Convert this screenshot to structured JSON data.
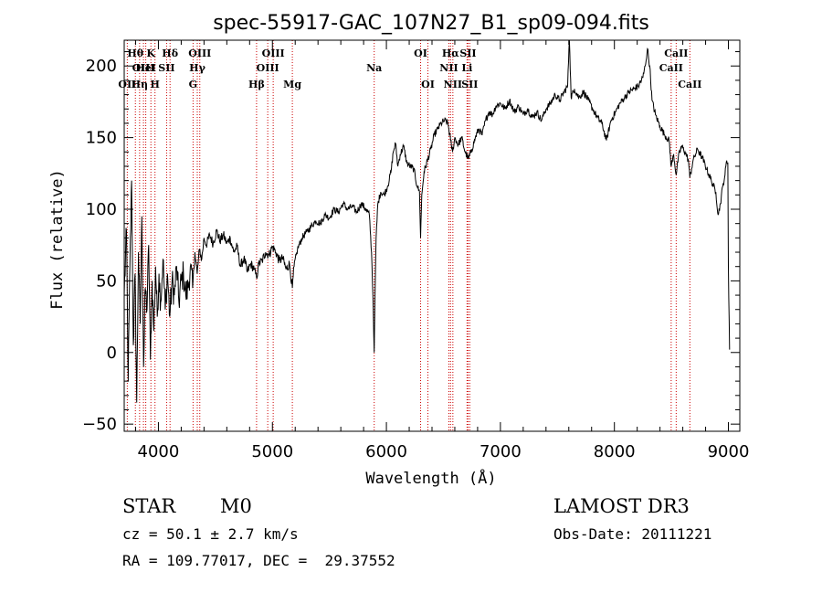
{
  "chart_data": {
    "type": "line",
    "title": "spec-55917-GAC_107N27_B1_sp09-094.fits",
    "xlabel": "Wavelength (Å)",
    "ylabel": "Flux (relative)",
    "xlim": [
      3700,
      9100
    ],
    "ylim": [
      -55,
      218
    ],
    "xticks": [
      4000,
      5000,
      6000,
      7000,
      8000,
      9000
    ],
    "yticks": [
      -50,
      0,
      50,
      100,
      150,
      200
    ],
    "grid": false,
    "spectrum": [
      [
        3700,
        40
      ],
      [
        3720,
        85
      ],
      [
        3735,
        -20
      ],
      [
        3750,
        60
      ],
      [
        3765,
        120
      ],
      [
        3780,
        5
      ],
      [
        3795,
        55
      ],
      [
        3810,
        -35
      ],
      [
        3825,
        70
      ],
      [
        3840,
        20
      ],
      [
        3855,
        95
      ],
      [
        3870,
        -10
      ],
      [
        3885,
        45
      ],
      [
        3900,
        30
      ],
      [
        3915,
        75
      ],
      [
        3930,
        -5
      ],
      [
        3945,
        50
      ],
      [
        3960,
        15
      ],
      [
        3975,
        60
      ],
      [
        3990,
        25
      ],
      [
        4005,
        55
      ],
      [
        4020,
        35
      ],
      [
        4040,
        65
      ],
      [
        4060,
        30
      ],
      [
        4080,
        55
      ],
      [
        4100,
        25
      ],
      [
        4120,
        50
      ],
      [
        4140,
        40
      ],
      [
        4160,
        60
      ],
      [
        4180,
        35
      ],
      [
        4200,
        50
      ],
      [
        4220,
        55
      ],
      [
        4240,
        40
      ],
      [
        4260,
        45
      ],
      [
        4280,
        60
      ],
      [
        4300,
        45
      ],
      [
        4320,
        70
      ],
      [
        4340,
        55
      ],
      [
        4360,
        72
      ],
      [
        4380,
        65
      ],
      [
        4400,
        80
      ],
      [
        4420,
        75
      ],
      [
        4450,
        82
      ],
      [
        4480,
        76
      ],
      [
        4510,
        85
      ],
      [
        4540,
        78
      ],
      [
        4570,
        82
      ],
      [
        4600,
        76
      ],
      [
        4630,
        80
      ],
      [
        4660,
        70
      ],
      [
        4690,
        74
      ],
      [
        4720,
        60
      ],
      [
        4750,
        66
      ],
      [
        4780,
        56
      ],
      [
        4810,
        62
      ],
      [
        4840,
        58
      ],
      [
        4861,
        52
      ],
      [
        4880,
        62
      ],
      [
        4910,
        64
      ],
      [
        4940,
        70
      ],
      [
        4970,
        68
      ],
      [
        5000,
        74
      ],
      [
        5030,
        70
      ],
      [
        5060,
        64
      ],
      [
        5090,
        66
      ],
      [
        5120,
        58
      ],
      [
        5150,
        62
      ],
      [
        5175,
        45
      ],
      [
        5190,
        60
      ],
      [
        5220,
        72
      ],
      [
        5260,
        80
      ],
      [
        5300,
        84
      ],
      [
        5340,
        88
      ],
      [
        5380,
        92
      ],
      [
        5420,
        90
      ],
      [
        5460,
        96
      ],
      [
        5500,
        94
      ],
      [
        5540,
        100
      ],
      [
        5580,
        98
      ],
      [
        5620,
        104
      ],
      [
        5660,
        100
      ],
      [
        5700,
        102
      ],
      [
        5740,
        98
      ],
      [
        5780,
        104
      ],
      [
        5820,
        100
      ],
      [
        5850,
        96
      ],
      [
        5870,
        70
      ],
      [
        5885,
        30
      ],
      [
        5893,
        0
      ],
      [
        5900,
        40
      ],
      [
        5910,
        80
      ],
      [
        5925,
        104
      ],
      [
        5950,
        112
      ],
      [
        5980,
        110
      ],
      [
        6010,
        116
      ],
      [
        6040,
        126
      ],
      [
        6060,
        140
      ],
      [
        6080,
        146
      ],
      [
        6100,
        130
      ],
      [
        6120,
        138
      ],
      [
        6150,
        144
      ],
      [
        6180,
        132
      ],
      [
        6210,
        130
      ],
      [
        6240,
        128
      ],
      [
        6270,
        116
      ],
      [
        6290,
        112
      ],
      [
        6300,
        80
      ],
      [
        6310,
        110
      ],
      [
        6330,
        126
      ],
      [
        6360,
        134
      ],
      [
        6390,
        142
      ],
      [
        6420,
        152
      ],
      [
        6450,
        156
      ],
      [
        6480,
        160
      ],
      [
        6510,
        162
      ],
      [
        6540,
        160
      ],
      [
        6563,
        148
      ],
      [
        6580,
        140
      ],
      [
        6600,
        150
      ],
      [
        6630,
        145
      ],
      [
        6660,
        150
      ],
      [
        6690,
        140
      ],
      [
        6720,
        135
      ],
      [
        6750,
        142
      ],
      [
        6780,
        150
      ],
      [
        6810,
        156
      ],
      [
        6840,
        152
      ],
      [
        6870,
        162
      ],
      [
        6900,
        168
      ],
      [
        6930,
        166
      ],
      [
        6960,
        172
      ],
      [
        7000,
        174
      ],
      [
        7040,
        170
      ],
      [
        7080,
        176
      ],
      [
        7120,
        168
      ],
      [
        7160,
        172
      ],
      [
        7200,
        166
      ],
      [
        7240,
        170
      ],
      [
        7280,
        164
      ],
      [
        7320,
        168
      ],
      [
        7360,
        162
      ],
      [
        7400,
        170
      ],
      [
        7440,
        174
      ],
      [
        7480,
        180
      ],
      [
        7520,
        176
      ],
      [
        7560,
        182
      ],
      [
        7590,
        186
      ],
      [
        7605,
        222
      ],
      [
        7620,
        178
      ],
      [
        7650,
        184
      ],
      [
        7690,
        178
      ],
      [
        7730,
        182
      ],
      [
        7770,
        176
      ],
      [
        7810,
        170
      ],
      [
        7850,
        164
      ],
      [
        7890,
        160
      ],
      [
        7930,
        148
      ],
      [
        7970,
        162
      ],
      [
        8010,
        168
      ],
      [
        8050,
        174
      ],
      [
        8090,
        178
      ],
      [
        8130,
        182
      ],
      [
        8170,
        184
      ],
      [
        8210,
        186
      ],
      [
        8250,
        192
      ],
      [
        8270,
        200
      ],
      [
        8290,
        212
      ],
      [
        8310,
        200
      ],
      [
        8330,
        176
      ],
      [
        8360,
        166
      ],
      [
        8400,
        158
      ],
      [
        8440,
        152
      ],
      [
        8480,
        148
      ],
      [
        8498,
        130
      ],
      [
        8520,
        138
      ],
      [
        8542,
        124
      ],
      [
        8560,
        136
      ],
      [
        8590,
        144
      ],
      [
        8620,
        140
      ],
      [
        8650,
        134
      ],
      [
        8662,
        122
      ],
      [
        8690,
        134
      ],
      [
        8730,
        142
      ],
      [
        8770,
        136
      ],
      [
        8810,
        128
      ],
      [
        8850,
        120
      ],
      [
        8890,
        112
      ],
      [
        8910,
        96
      ],
      [
        8930,
        104
      ],
      [
        8950,
        116
      ],
      [
        8970,
        124
      ],
      [
        8985,
        134
      ],
      [
        8995,
        132
      ],
      [
        9000,
        60
      ],
      [
        9010,
        2
      ]
    ],
    "line_markers": [
      {
        "wl": 3727,
        "label": "OII",
        "row": 3
      },
      {
        "wl": 3798,
        "label": "Hθ",
        "row": 1
      },
      {
        "wl": 3835,
        "label": "Hη",
        "row": 3
      },
      {
        "wl": 3869,
        "label": "OIII",
        "row": 2
      },
      {
        "wl": 3889,
        "label": "HeI",
        "row": 2
      },
      {
        "wl": 3934,
        "label": "K",
        "row": 1
      },
      {
        "wl": 3970,
        "label": "H",
        "row": 3
      },
      {
        "wl": 4072,
        "label": "SII",
        "row": 2
      },
      {
        "wl": 4102,
        "label": "Hδ",
        "row": 1
      },
      {
        "wl": 4304,
        "label": "G",
        "row": 3
      },
      {
        "wl": 4341,
        "label": "Hγ",
        "row": 2
      },
      {
        "wl": 4363,
        "label": "OIII",
        "row": 1
      },
      {
        "wl": 4861,
        "label": "Hβ",
        "row": 3
      },
      {
        "wl": 4959,
        "label": "OIII",
        "row": 2
      },
      {
        "wl": 5007,
        "label": "OIII",
        "row": 1
      },
      {
        "wl": 5175,
        "label": "Mg",
        "row": 3
      },
      {
        "wl": 5893,
        "label": "Na",
        "row": 2
      },
      {
        "wl": 6300,
        "label": "OI",
        "row": 1
      },
      {
        "wl": 6364,
        "label": "OI",
        "row": 3
      },
      {
        "wl": 6548,
        "label": "NII",
        "row": 2
      },
      {
        "wl": 6563,
        "label": "Hα",
        "row": 1
      },
      {
        "wl": 6583,
        "label": "NII",
        "row": 3
      },
      {
        "wl": 6707,
        "label": "Li",
        "row": 2
      },
      {
        "wl": 6716,
        "label": "SII",
        "row": 1
      },
      {
        "wl": 6731,
        "label": "SII",
        "row": 3
      },
      {
        "wl": 8498,
        "label": "CaII",
        "row": 2
      },
      {
        "wl": 8542,
        "label": "CaII",
        "row": 1
      },
      {
        "wl": 8662,
        "label": "CaII",
        "row": 3
      }
    ]
  },
  "info": {
    "class": "STAR",
    "subclass": "M0",
    "cz": "cz = 50.1 ± 2.7 km/s",
    "radec": "RA = 109.77017, DEC =  29.37552",
    "survey": "LAMOST DR3",
    "obsdate": "Obs-Date: 20111221"
  },
  "colors": {
    "spectrum": "#000000",
    "line_markers": "#cc0000",
    "axes": "#000000"
  }
}
